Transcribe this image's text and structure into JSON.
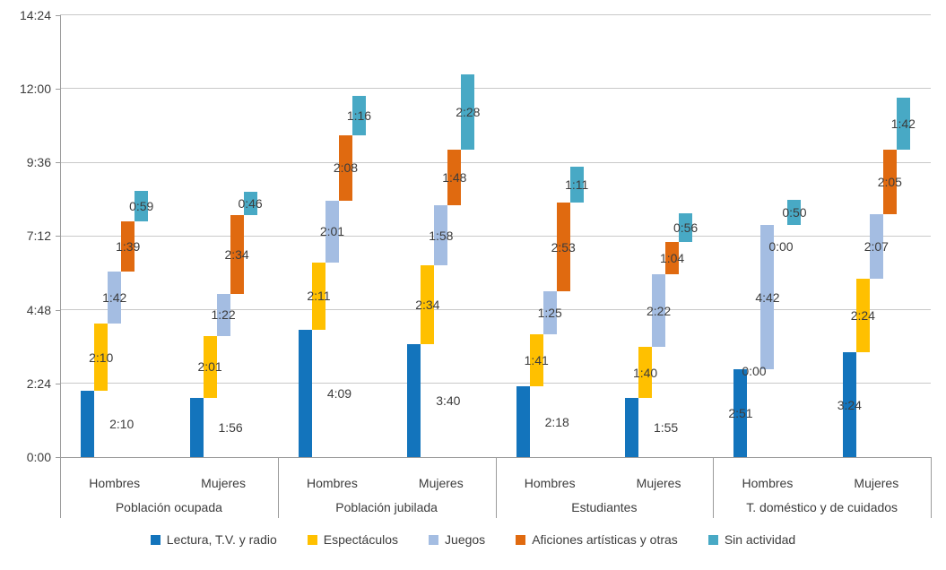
{
  "chart_data": {
    "type": "bar",
    "subtype": "cascading-stacked-waterfall",
    "title": "",
    "xlabel": "",
    "ylabel": "",
    "gridlines": true,
    "legend_position": "bottom",
    "y_axis": {
      "ticks": [
        "0:00",
        "2:24",
        "4:48",
        "7:12",
        "9:36",
        "12:00",
        "14:24"
      ],
      "min_minutes": 0,
      "max_minutes": 864,
      "tick_interval_minutes": 144
    },
    "series": [
      {
        "name": "Lectura, T.V. y radio",
        "color": "#1374bc"
      },
      {
        "name": "Espectáculos",
        "color": "#ffc000"
      },
      {
        "name": "Juegos",
        "color": "#a4bde2"
      },
      {
        "name": "Aficiones artísticas y otras",
        "color": "#e06a10"
      },
      {
        "name": "Sin actividad",
        "color": "#48a9c5"
      }
    ],
    "groups": [
      {
        "label": "Población ocupada",
        "bars": [
          {
            "label": "Hombres",
            "values": [
              "2:10",
              "2:10",
              "1:42",
              "1:39",
              "0:59"
            ]
          },
          {
            "label": "Mujeres",
            "values": [
              "1:56",
              "2:01",
              "1:22",
              "2:34",
              "0:46"
            ]
          }
        ]
      },
      {
        "label": "Población jubilada",
        "bars": [
          {
            "label": "Hombres",
            "values": [
              "4:09",
              "2:11",
              "2:01",
              "2:08",
              "1:16"
            ]
          },
          {
            "label": "Mujeres",
            "values": [
              "3:40",
              "2:34",
              "1:58",
              "1:48",
              "2:28"
            ]
          }
        ]
      },
      {
        "label": "Estudiantes",
        "bars": [
          {
            "label": "Hombres",
            "values": [
              "2:18",
              "1:41",
              "1:25",
              "2:53",
              "1:11"
            ]
          },
          {
            "label": "Mujeres",
            "values": [
              "1:55",
              "1:40",
              "2:22",
              "1:04",
              "0:56"
            ]
          }
        ]
      },
      {
        "label": "T. doméstico y de cuidados",
        "bars": [
          {
            "label": "Hombres",
            "values": [
              "2:51",
              "0:00",
              "4:42",
              "0:00",
              "0:50"
            ]
          },
          {
            "label": "Mujeres",
            "values": [
              "3:24",
              "2:24",
              "2:07",
              "2:05",
              "1:42"
            ]
          }
        ]
      }
    ],
    "style": {
      "gridline_color": "#c9c9c9",
      "axis_color": "#9b9b9b",
      "text_color": "#3c3c3c"
    }
  }
}
